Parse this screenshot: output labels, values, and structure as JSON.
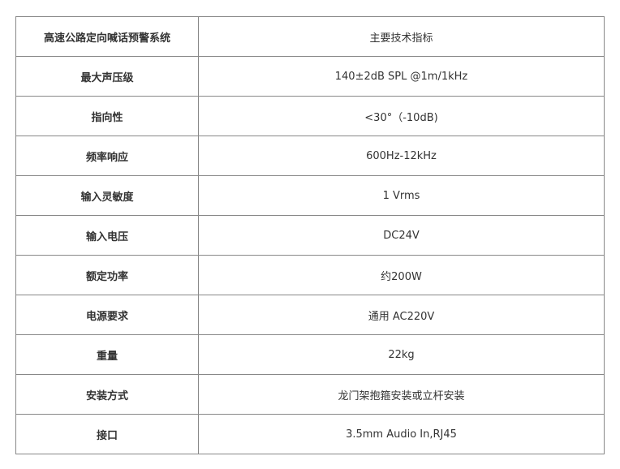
{
  "header": {
    "left": "高速公路定向喊话预警系统",
    "right": "主要技术指标"
  },
  "rows": [
    {
      "label": "最大声压级",
      "value": "140±2dB SPL @1m/1kHz"
    },
    {
      "label": "指向性",
      "value": "<30°（-10dB)"
    },
    {
      "label": "频率响应",
      "value": "600Hz-12kHz"
    },
    {
      "label": "输入灵敏度",
      "value": "1 Vrms"
    },
    {
      "label": "输入电压",
      "value": "DC24V"
    },
    {
      "label": "额定功率",
      "value": "约200W"
    },
    {
      "label": "电源要求",
      "value": "通用 AC220V"
    },
    {
      "label": "重量",
      "value": "22kg"
    },
    {
      "label": "安装方式",
      "value": "龙门架抱箍安装或立杆安装"
    },
    {
      "label": "接口",
      "value": "3.5mm Audio In,RJ45"
    }
  ]
}
